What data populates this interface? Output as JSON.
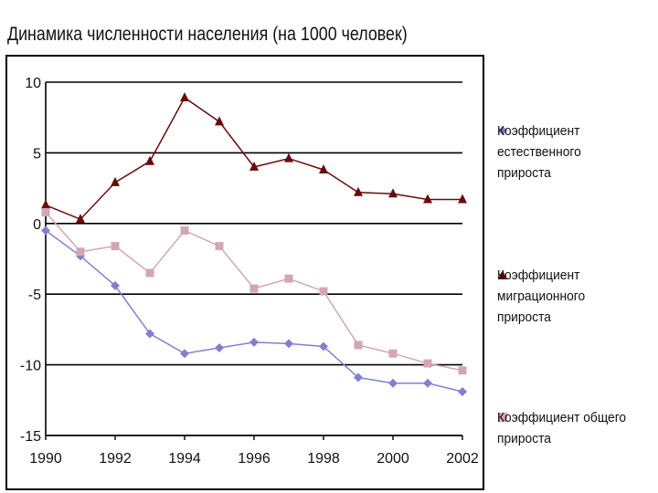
{
  "page": {
    "title": "Динамика численности населения (на 1000 человек)"
  },
  "chart_data": {
    "type": "line",
    "title": "Динамика численности населения (на 1000 человек)",
    "x": [
      1990,
      1991,
      1992,
      1993,
      1994,
      1995,
      1996,
      1997,
      1998,
      1999,
      2000,
      2001,
      2002
    ],
    "x_tick_labels": [
      "1990",
      "1992",
      "1994",
      "1996",
      "1998",
      "2000",
      "2002"
    ],
    "x_tick_values": [
      1990,
      1992,
      1994,
      1996,
      1998,
      2000,
      2002
    ],
    "y_tick_labels": [
      "10",
      "5",
      "0",
      "-5",
      "-10",
      "-15"
    ],
    "y_tick_values": [
      10,
      5,
      0,
      -5,
      -10,
      -15
    ],
    "ylim": [
      -15,
      10
    ],
    "xlim": [
      1990,
      2002
    ],
    "grid": "horizontal",
    "legend_position": "right",
    "series": [
      {
        "name": "Коэффициент естественного прироста",
        "color": "#8080d0",
        "marker": "diamond",
        "values": [
          -0.5,
          -2.3,
          -4.4,
          -7.8,
          -9.2,
          -8.8,
          -8.4,
          -8.5,
          -8.7,
          -10.9,
          -11.3,
          -11.3,
          -11.9
        ]
      },
      {
        "name": "Коэффициент миграционного прироста",
        "color": "#6b0a0a",
        "marker": "triangle",
        "values": [
          1.3,
          0.3,
          2.9,
          4.4,
          8.9,
          7.2,
          4.0,
          4.6,
          3.8,
          2.2,
          2.1,
          1.7,
          1.7
        ]
      },
      {
        "name": "Коэффициент общего прироста",
        "color": "#d4a6b4",
        "marker": "square",
        "values": [
          0.8,
          -2.0,
          -1.6,
          -3.5,
          -0.5,
          -1.6,
          -4.6,
          -3.9,
          -4.8,
          -8.6,
          -9.2,
          -9.9,
          -10.4
        ]
      }
    ]
  }
}
